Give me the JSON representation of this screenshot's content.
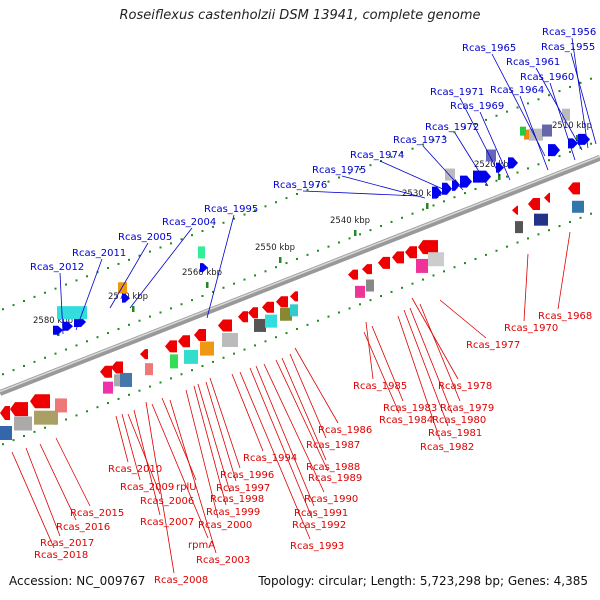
{
  "title": "Roseiflexus castenholzii DSM 13941, complete genome",
  "footer": {
    "accession": "Accession: NC_009767",
    "topology": "Topology: circular; Length: 5,723,298 bp; Genes: 4,385"
  },
  "scale_labels": [
    "2510 kbp",
    "2520 kbp",
    "2530 kbp",
    "2540 kbp",
    "2550 kbp",
    "2560 kbp",
    "2570 kbp",
    "2580 kbp"
  ],
  "upper_gene_labels": [
    "Rcas_1956",
    "Rcas_1955",
    "Rcas_1965",
    "Rcas_1961",
    "Rcas_1960",
    "Rcas_1964",
    "Rcas_1971",
    "Rcas_1969",
    "Rcas_1972",
    "Rcas_1973",
    "Rcas_1974",
    "Rcas_1975",
    "Rcas_1976",
    "Rcas_1995",
    "Rcas_2004",
    "Rcas_2005",
    "Rcas_2011",
    "Rcas_2012"
  ],
  "lower_gene_labels": [
    "Rcas_1968",
    "Rcas_1970",
    "Rcas_1977",
    "Rcas_1978",
    "Rcas_1979",
    "Rcas_1980",
    "Rcas_1981",
    "Rcas_1982",
    "Rcas_1985",
    "Rcas_1983",
    "Rcas_1984",
    "Rcas_1986",
    "Rcas_1987",
    "Rcas_1988",
    "Rcas_1989",
    "Rcas_1990",
    "Rcas_1991",
    "Rcas_1992",
    "Rcas_1993",
    "Rcas_1994",
    "Rcas_1996",
    "Rcas_1997",
    "Rcas_1998",
    "Rcas_1999",
    "Rcas_2000",
    "Rcas_2010",
    "Rcas_2009",
    "rplU",
    "Rcas_2006",
    "Rcas_2007",
    "rpmA",
    "Rcas_2003",
    "Rcas_2008",
    "Rcas_2015",
    "Rcas_2016",
    "Rcas_2017",
    "Rcas_2018"
  ],
  "colors": {
    "upper_label": "#0000cc",
    "lower_label": "#dd0000",
    "forward_gene": "#0000ee",
    "reverse_gene": "#ee0000",
    "backbone": "#888888",
    "tick": "#228822"
  }
}
